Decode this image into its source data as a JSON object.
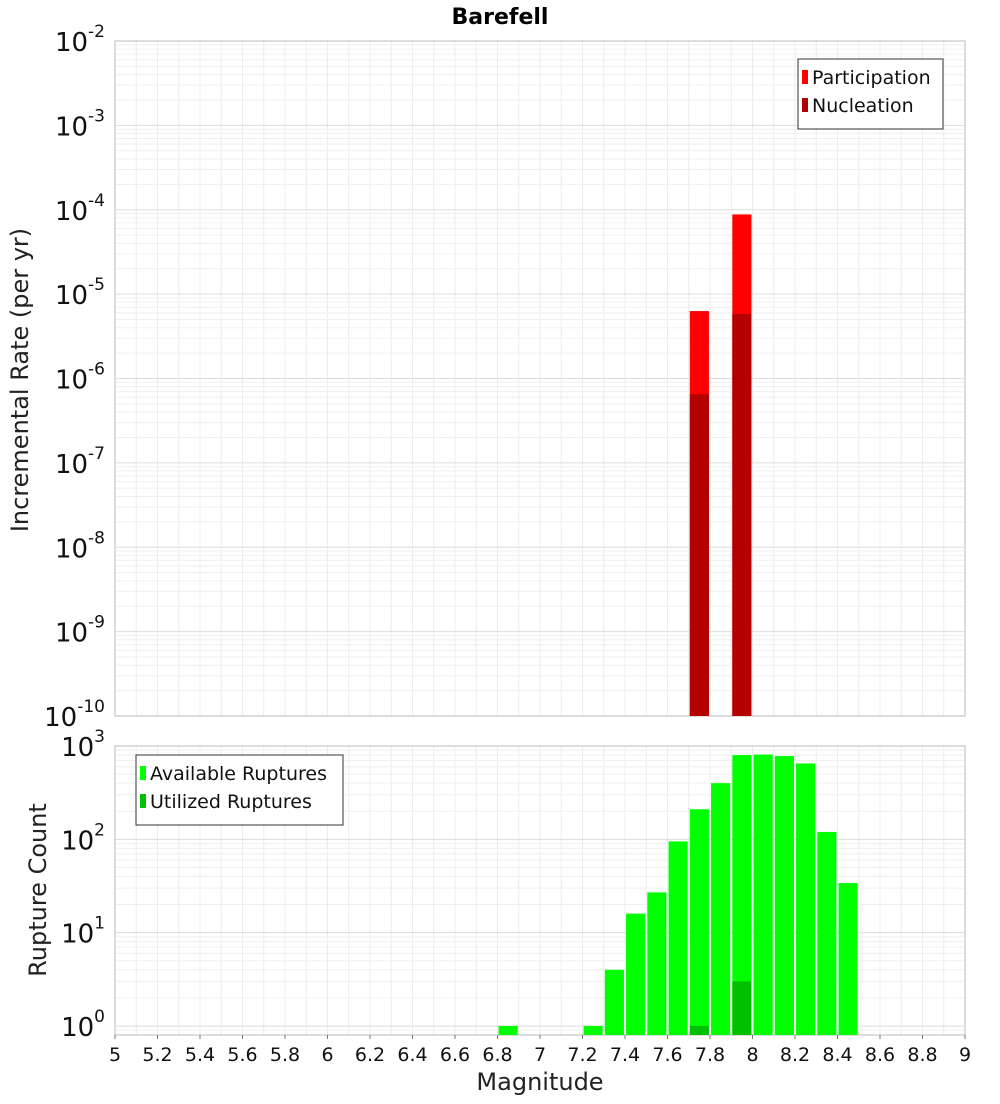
{
  "chart_data": [
    {
      "type": "bar",
      "title": "Barefell",
      "xlabel": "",
      "ylabel": "Incremental Rate (per yr)",
      "yscale": "log",
      "ylim": [
        1e-10,
        0.01
      ],
      "xlim": [
        5,
        9
      ],
      "grid": true,
      "legend_position": "top-right",
      "series": [
        {
          "name": "Participation",
          "color": "#ff0000",
          "x": [
            7.75,
            7.95
          ],
          "values": [
            6.3e-06,
            8.8e-05
          ]
        },
        {
          "name": "Nucleation",
          "color": "#b40000",
          "x": [
            7.75,
            7.95
          ],
          "values": [
            6.5e-07,
            5.8e-06
          ]
        }
      ],
      "y_tick_exponents": [
        -10,
        -9,
        -8,
        -7,
        -6,
        -5,
        -4,
        -3,
        -2
      ]
    },
    {
      "type": "bar",
      "title": "",
      "xlabel": "Magnitude",
      "ylabel": "Rupture Count",
      "yscale": "log",
      "ylim": [
        0.8,
        1000
      ],
      "xlim": [
        5,
        9
      ],
      "grid": true,
      "legend_position": "top-left",
      "series": [
        {
          "name": "Available Ruptures",
          "color": "#00ff00",
          "x": [
            6.85,
            7.25,
            7.35,
            7.45,
            7.55,
            7.65,
            7.75,
            7.85,
            7.95,
            8.05,
            8.15,
            8.25,
            8.35,
            8.45
          ],
          "values": [
            1,
            1,
            4,
            16,
            27,
            95,
            210,
            400,
            800,
            810,
            780,
            650,
            120,
            34
          ]
        },
        {
          "name": "Utilized Ruptures",
          "color": "#00c000",
          "x": [
            7.75,
            7.95
          ],
          "values": [
            1,
            3
          ]
        }
      ],
      "y_tick_exponents": [
        0,
        1,
        2,
        3
      ],
      "x_ticks": [
        "5",
        "5.2",
        "5.4",
        "5.6",
        "5.8",
        "6",
        "6.2",
        "6.4",
        "6.6",
        "6.8",
        "7",
        "7.2",
        "7.4",
        "7.6",
        "7.8",
        "8",
        "8.2",
        "8.4",
        "8.6",
        "8.8",
        "9"
      ]
    }
  ]
}
